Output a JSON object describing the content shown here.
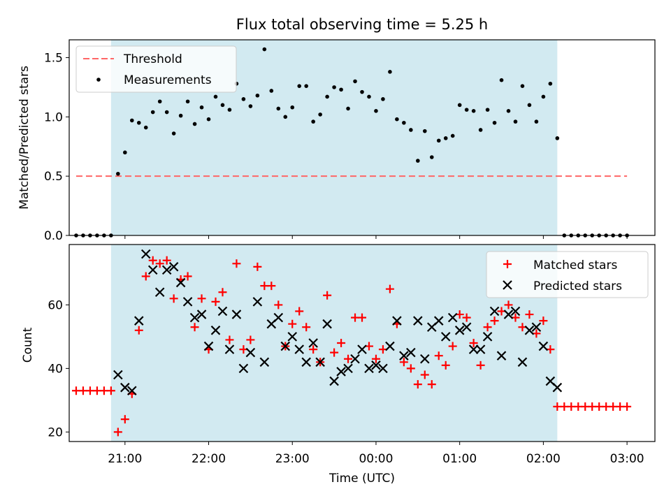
{
  "figure": {
    "title": "Flux total observing time = 5.25 h",
    "xlabel": "Time (UTC)"
  },
  "chart_data": [
    {
      "type": "scatter",
      "panel": "top",
      "title": "Flux total observing time = 5.25 h",
      "xlabel": "",
      "ylabel": "Matched/Predicted stars",
      "ylim": [
        0,
        1.65
      ],
      "xlim": [
        "20:20",
        "03:20"
      ],
      "yticks": [
        "0.0",
        "0.5",
        "1.0",
        "1.5"
      ],
      "y_tick_values": [
        0,
        0.5,
        1.0,
        1.5
      ],
      "observing_window": {
        "start": "20:50",
        "end": "02:10",
        "color": "#add8e6"
      },
      "legend": {
        "position": "top-left",
        "entries": [
          "Threshold",
          "Measurements"
        ]
      },
      "series": [
        {
          "name": "Threshold",
          "style": "dashed-line",
          "color": "#ff6666",
          "x": [
            "20:25",
            "03:00"
          ],
          "y": [
            0.5,
            0.5
          ]
        },
        {
          "name": "Measurements",
          "style": "dot",
          "color": "#000000",
          "x": [
            "20:25",
            "20:30",
            "20:35",
            "20:40",
            "20:45",
            "20:50",
            "20:55",
            "21:00",
            "21:05",
            "21:10",
            "21:15",
            "21:20",
            "21:25",
            "21:30",
            "21:35",
            "21:40",
            "21:45",
            "21:50",
            "21:55",
            "22:00",
            "22:05",
            "22:10",
            "22:15",
            "22:20",
            "22:25",
            "22:30",
            "22:35",
            "22:40",
            "22:45",
            "22:50",
            "22:55",
            "23:00",
            "23:05",
            "23:10",
            "23:15",
            "23:20",
            "23:25",
            "23:30",
            "23:35",
            "23:40",
            "23:45",
            "23:50",
            "23:55",
            "00:00",
            "00:05",
            "00:10",
            "00:15",
            "00:20",
            "00:25",
            "00:30",
            "00:35",
            "00:40",
            "00:45",
            "00:50",
            "00:55",
            "01:00",
            "01:05",
            "01:10",
            "01:15",
            "01:20",
            "01:25",
            "01:30",
            "01:35",
            "01:40",
            "01:45",
            "01:50",
            "01:55",
            "02:00",
            "02:05",
            "02:10",
            "02:15",
            "02:20",
            "02:25",
            "02:30",
            "02:35",
            "02:40",
            "02:45",
            "02:50",
            "02:55",
            "03:00"
          ],
          "y": [
            0,
            0,
            0,
            0,
            0,
            0,
            0.52,
            0.7,
            0.97,
            0.95,
            0.91,
            1.04,
            1.13,
            1.04,
            0.86,
            1.01,
            1.13,
            0.94,
            1.08,
            0.98,
            1.17,
            1.1,
            1.06,
            1.28,
            1.15,
            1.09,
            1.18,
            1.57,
            1.22,
            1.07,
            1.0,
            1.08,
            1.26,
            1.26,
            0.96,
            1.02,
            1.17,
            1.25,
            1.23,
            1.07,
            1.3,
            1.21,
            1.17,
            1.05,
            1.15,
            1.38,
            0.98,
            0.95,
            0.89,
            0.63,
            0.88,
            0.66,
            0.8,
            0.82,
            0.84,
            1.1,
            1.06,
            1.05,
            0.89,
            1.06,
            0.95,
            1.31,
            1.05,
            0.96,
            1.26,
            1.1,
            0.96,
            1.17,
            1.28,
            0.82,
            0,
            0,
            0,
            0,
            0,
            0,
            0,
            0,
            0,
            0
          ]
        }
      ]
    },
    {
      "type": "scatter",
      "panel": "bottom",
      "xlabel": "Time (UTC)",
      "ylabel": "Count",
      "ylim": [
        17,
        79
      ],
      "xlim": [
        "20:20",
        "03:20"
      ],
      "xticks": [
        "21:00",
        "22:00",
        "23:00",
        "00:00",
        "01:00",
        "02:00",
        "03:00"
      ],
      "yticks": [
        "20",
        "40",
        "60"
      ],
      "y_tick_values": [
        20,
        40,
        60
      ],
      "observing_window": {
        "start": "20:50",
        "end": "02:10",
        "color": "#add8e6"
      },
      "legend": {
        "position": "top-right",
        "entries": [
          "Matched stars",
          "Predicted stars"
        ]
      },
      "series": [
        {
          "name": "Matched stars",
          "marker": "plus",
          "color": "#ff0000",
          "x": [
            "20:25",
            "20:30",
            "20:35",
            "20:40",
            "20:45",
            "20:50",
            "20:55",
            "21:00",
            "21:05",
            "21:10",
            "21:15",
            "21:20",
            "21:25",
            "21:30",
            "21:35",
            "21:40",
            "21:45",
            "21:50",
            "21:55",
            "22:00",
            "22:05",
            "22:10",
            "22:15",
            "22:20",
            "22:25",
            "22:30",
            "22:35",
            "22:40",
            "22:45",
            "22:50",
            "22:55",
            "23:00",
            "23:05",
            "23:10",
            "23:15",
            "23:20",
            "23:25",
            "23:30",
            "23:35",
            "23:40",
            "23:45",
            "23:50",
            "23:55",
            "00:00",
            "00:05",
            "00:10",
            "00:15",
            "00:20",
            "00:25",
            "00:30",
            "00:35",
            "00:40",
            "00:45",
            "00:50",
            "00:55",
            "01:00",
            "01:05",
            "01:10",
            "01:15",
            "01:20",
            "01:25",
            "01:30",
            "01:35",
            "01:40",
            "01:45",
            "01:50",
            "01:55",
            "02:00",
            "02:05",
            "02:10",
            "02:15",
            "02:20",
            "02:25",
            "02:30",
            "02:35",
            "02:40",
            "02:45",
            "02:50",
            "02:55",
            "03:00"
          ],
          "y": [
            33,
            33,
            33,
            33,
            33,
            33,
            20,
            24,
            32,
            52,
            69,
            74,
            73,
            74,
            62,
            68,
            69,
            53,
            62,
            46,
            61,
            64,
            49,
            73,
            46,
            49,
            72,
            66,
            66,
            60,
            47,
            54,
            58,
            53,
            46,
            42,
            63,
            45,
            48,
            43,
            56,
            56,
            47,
            43,
            46,
            65,
            54,
            42,
            40,
            35,
            38,
            35,
            44,
            41,
            47,
            57,
            56,
            48,
            41,
            53,
            55,
            58,
            60,
            56,
            53,
            57,
            51,
            55,
            46,
            28,
            28,
            28,
            28,
            28,
            28,
            28,
            28,
            28,
            28,
            28
          ]
        },
        {
          "name": "Predicted stars",
          "marker": "x",
          "color": "#000000",
          "x": [
            "20:55",
            "21:00",
            "21:05",
            "21:10",
            "21:15",
            "21:20",
            "21:25",
            "21:30",
            "21:35",
            "21:40",
            "21:45",
            "21:50",
            "21:55",
            "22:00",
            "22:05",
            "22:10",
            "22:15",
            "22:20",
            "22:25",
            "22:30",
            "22:35",
            "22:40",
            "22:45",
            "22:50",
            "22:55",
            "23:00",
            "23:05",
            "23:10",
            "23:15",
            "23:20",
            "23:25",
            "23:30",
            "23:35",
            "23:40",
            "23:45",
            "23:50",
            "23:55",
            "00:00",
            "00:05",
            "00:10",
            "00:15",
            "00:20",
            "00:25",
            "00:30",
            "00:35",
            "00:40",
            "00:45",
            "00:50",
            "00:55",
            "01:00",
            "01:05",
            "01:10",
            "01:15",
            "01:20",
            "01:25",
            "01:30",
            "01:35",
            "01:40",
            "01:45",
            "01:50",
            "01:55",
            "02:00",
            "02:05",
            "02:10"
          ],
          "y": [
            38,
            34,
            33,
            55,
            76,
            71,
            64,
            71,
            72,
            67,
            61,
            56,
            57,
            47,
            52,
            58,
            46,
            57,
            40,
            45,
            61,
            42,
            54,
            56,
            47,
            50,
            46,
            42,
            48,
            42,
            54,
            36,
            39,
            40,
            43,
            46,
            40,
            41,
            40,
            47,
            55,
            44,
            45,
            55,
            43,
            53,
            55,
            50,
            56,
            52,
            53,
            46,
            46,
            50,
            58,
            44,
            57,
            58,
            42,
            52,
            53,
            47,
            36,
            34
          ]
        }
      ]
    }
  ]
}
